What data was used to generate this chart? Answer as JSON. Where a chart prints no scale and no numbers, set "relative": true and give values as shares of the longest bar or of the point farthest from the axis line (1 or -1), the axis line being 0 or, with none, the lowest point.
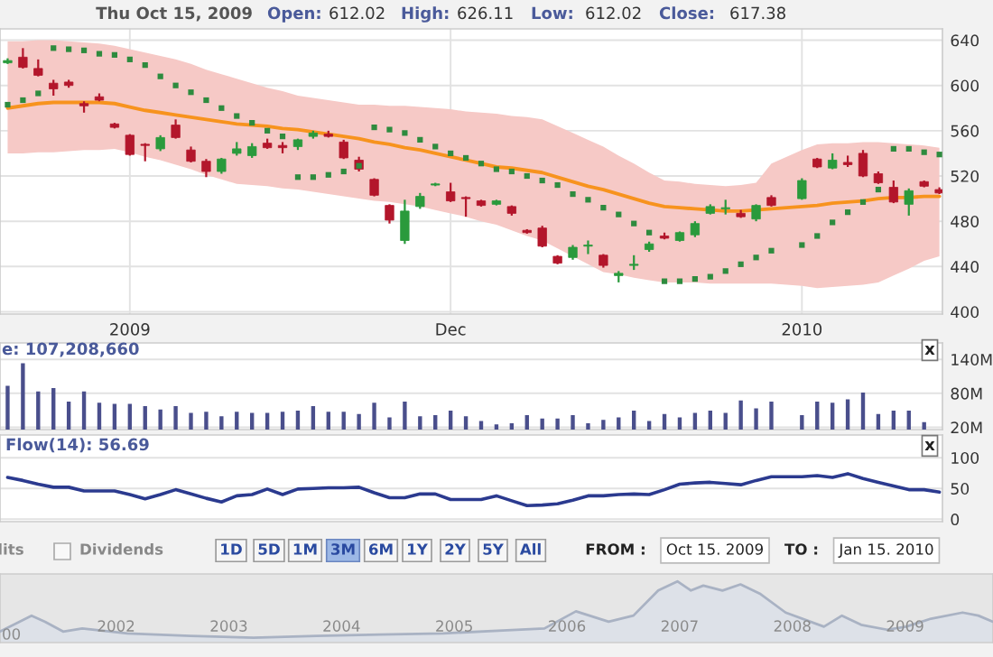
{
  "chart_data": [
    {
      "type": "candlestick",
      "annotations": [
        "Thu Oct 15, 2009",
        "Open:",
        "612.02",
        "High:",
        "626.11",
        "Low:",
        "612.02",
        "Close:",
        "617.38"
      ],
      "categories": [
        null,
        null,
        null,
        null,
        null,
        null,
        null,
        null,
        "2009",
        null,
        null,
        null,
        null,
        null,
        null,
        null,
        null,
        null,
        null,
        null,
        null,
        null,
        null,
        null,
        null,
        null,
        null,
        null,
        null,
        "Dec",
        null,
        null,
        null,
        null,
        null,
        null,
        null,
        null,
        null,
        null,
        null,
        null,
        null,
        null,
        null,
        null,
        null,
        null,
        null,
        null,
        null,
        null,
        "2010",
        null,
        null,
        null,
        null,
        null,
        null,
        null,
        null,
        null
      ],
      "ohlc": [
        [
          620,
          624,
          619,
          622
        ],
        [
          625,
          633,
          615,
          616
        ],
        [
          615,
          623,
          608,
          609
        ],
        [
          602,
          605,
          591,
          597
        ],
        [
          603,
          605,
          598,
          600
        ],
        [
          584,
          586,
          576,
          582
        ],
        [
          590,
          593,
          586,
          587
        ],
        [
          566,
          567,
          562,
          563
        ],
        [
          556,
          557,
          538,
          539
        ],
        [
          548,
          549,
          533,
          547
        ],
        [
          544,
          556,
          542,
          554
        ],
        [
          565,
          570,
          553,
          554
        ],
        [
          543,
          546,
          532,
          533
        ],
        [
          533,
          535,
          519,
          524
        ],
        [
          524,
          536,
          522,
          535
        ],
        [
          540,
          550,
          538,
          544
        ],
        [
          538,
          549,
          536,
          546
        ],
        [
          549,
          553,
          544,
          545
        ],
        [
          547,
          550,
          540,
          545
        ],
        [
          546,
          553,
          543,
          552
        ],
        [
          555,
          560,
          553,
          558
        ],
        [
          557,
          560,
          554,
          555
        ],
        [
          550,
          552,
          535,
          536
        ],
        [
          534,
          537,
          524,
          526
        ],
        [
          517,
          518,
          502,
          503
        ],
        [
          494,
          495,
          478,
          481
        ],
        [
          463,
          499,
          460,
          489
        ],
        [
          493,
          505,
          491,
          502
        ],
        [
          512,
          514,
          511,
          513
        ],
        [
          506,
          514,
          497,
          498
        ],
        [
          501,
          502,
          484,
          500
        ],
        [
          498,
          499,
          493,
          494
        ],
        [
          495,
          499,
          494,
          498
        ],
        [
          493,
          494,
          485,
          487
        ],
        [
          472,
          473,
          469,
          470
        ],
        [
          474,
          476,
          457,
          458
        ],
        [
          449,
          450,
          442,
          443
        ],
        [
          448,
          459,
          446,
          457
        ],
        [
          458,
          463,
          451,
          459
        ],
        [
          450,
          451,
          439,
          441
        ],
        [
          432,
          436,
          426,
          434
        ],
        [
          441,
          450,
          437,
          442
        ],
        [
          455,
          462,
          453,
          460
        ],
        [
          467,
          470,
          464,
          465
        ],
        [
          463,
          471,
          462,
          470
        ],
        [
          468,
          480,
          466,
          478
        ],
        [
          487,
          495,
          486,
          493
        ],
        [
          491,
          499,
          486,
          492
        ],
        [
          487,
          490,
          483,
          484
        ],
        [
          482,
          495,
          480,
          494
        ],
        [
          501,
          503,
          493,
          494
        ],
        null,
        [
          500,
          518,
          499,
          516
        ],
        [
          535,
          536,
          527,
          528
        ],
        [
          527,
          540,
          526,
          534
        ],
        [
          532,
          538,
          528,
          530
        ],
        [
          540,
          543,
          519,
          520
        ],
        [
          522,
          524,
          513,
          514
        ],
        [
          510,
          516,
          496,
          497
        ],
        [
          495,
          509,
          485,
          507
        ],
        [
          515,
          516,
          510,
          511
        ],
        [
          508,
          510,
          504,
          505
        ]
      ],
      "colors": [
        "#2a9a3c",
        "#b3162b",
        "#b3162b",
        "#b3162b",
        "#b3162b",
        "#b3162b",
        "#b3162b",
        "#b3162b",
        "#b3162b",
        "#b3162b",
        "#2a9a3c",
        "#b3162b",
        "#b3162b",
        "#b3162b",
        "#2a9a3c",
        "#2a9a3c",
        "#2a9a3c",
        "#b3162b",
        "#b3162b",
        "#2a9a3c",
        "#2a9a3c",
        "#b3162b",
        "#b3162b",
        "#b3162b",
        "#b3162b",
        "#b3162b",
        "#2a9a3c",
        "#2a9a3c",
        "#2a9a3c",
        "#b3162b",
        "#b3162b",
        "#b3162b",
        "#2a9a3c",
        "#b3162b",
        "#b3162b",
        "#b3162b",
        "#b3162b",
        "#2a9a3c",
        "#2a9a3c",
        "#b3162b",
        "#2a9a3c",
        "#2a9a3c",
        "#2a9a3c",
        "#b3162b",
        "#2a9a3c",
        "#2a9a3c",
        "#2a9a3c",
        "#2a9a3c",
        "#b3162b",
        "#2a9a3c",
        "#b3162b",
        null,
        "#2a9a3c",
        "#b3162b",
        "#2a9a3c",
        "#b3162b",
        "#b3162b",
        "#b3162b",
        "#b3162b",
        "#2a9a3c",
        "#b3162b",
        "#b3162b"
      ],
      "series": [
        {
          "type": "line",
          "color": "#f7931e",
          "values": [
            580,
            582,
            584,
            585,
            585,
            585,
            585,
            584,
            581,
            578,
            576,
            574,
            572,
            570,
            568,
            566,
            565,
            564,
            562,
            561,
            559,
            557,
            555,
            553,
            550,
            548,
            545,
            543,
            540,
            537,
            534,
            531,
            528,
            527,
            525,
            523,
            519,
            515,
            511,
            508,
            504,
            500,
            496,
            493,
            492,
            491,
            490,
            489,
            489,
            490,
            491,
            492,
            493,
            494,
            496,
            497,
            498,
            500,
            501,
            501,
            502,
            502
          ],
          "upper": [
            639,
            639,
            640,
            640,
            639,
            638,
            637,
            635,
            632,
            629,
            626,
            623,
            619,
            614,
            610,
            606,
            602,
            598,
            595,
            591,
            589,
            587,
            585,
            583,
            583,
            582,
            582,
            581,
            580,
            579,
            577,
            576,
            575,
            573,
            572,
            570,
            564,
            558,
            552,
            546,
            538,
            531,
            523,
            516,
            515,
            513,
            512,
            511,
            512,
            514,
            531,
            537,
            543,
            548,
            549,
            549,
            550,
            550,
            549,
            548,
            547,
            545
          ],
          "lower": [
            540,
            540,
            541,
            541,
            542,
            543,
            543,
            544,
            541,
            537,
            534,
            530,
            526,
            521,
            517,
            513,
            512,
            511,
            509,
            508,
            506,
            504,
            502,
            500,
            498,
            497,
            495,
            493,
            490,
            487,
            484,
            480,
            477,
            472,
            467,
            463,
            456,
            449,
            442,
            435,
            433,
            430,
            428,
            426,
            426,
            426,
            425,
            425,
            425,
            425,
            425,
            424,
            423,
            421,
            422,
            423,
            424,
            426,
            432,
            438,
            445,
            449
          ]
        },
        {
          "type": "scatter",
          "color": "#2e8b3e",
          "marker": "square",
          "values": [
            583,
            587,
            593,
            633,
            632,
            631,
            628,
            627,
            623,
            618,
            608,
            600,
            594,
            587,
            580,
            573,
            567,
            560,
            555,
            519,
            519,
            521,
            524,
            529,
            563,
            561,
            558,
            552,
            546,
            540,
            536,
            531,
            526,
            524,
            520,
            516,
            512,
            504,
            499,
            492,
            486,
            478,
            470,
            427,
            427,
            429,
            431,
            436,
            442,
            448,
            454,
            null,
            459,
            467,
            479,
            488,
            497,
            508,
            544,
            544,
            541,
            539
          ]
        }
      ],
      "ylim": [
        398,
        650
      ],
      "yticks": [
        400,
        440,
        480,
        520,
        560,
        600,
        640
      ],
      "grid": true
    },
    {
      "type": "bar",
      "annotations": [
        "e: 107,208,660",
        "x"
      ],
      "color": "#4a4f8c",
      "categories": [
        null,
        null,
        null,
        null,
        null,
        null,
        null,
        null,
        null,
        null,
        null,
        null,
        null,
        null,
        null,
        null,
        null,
        null,
        null,
        null,
        null,
        null,
        null,
        null,
        null,
        null,
        null,
        null,
        null,
        null,
        null,
        null,
        null,
        null,
        null,
        null,
        null,
        null,
        null,
        null,
        null,
        null,
        null,
        null,
        null,
        null,
        null,
        null,
        null,
        null,
        null,
        null,
        null,
        null,
        null,
        null,
        null,
        null,
        null,
        null,
        null,
        null
      ],
      "values": [
        92,
        132,
        82,
        88,
        64,
        82,
        62,
        60,
        60,
        56,
        50,
        56,
        44,
        46,
        38,
        46,
        44,
        44,
        46,
        48,
        56,
        46,
        46,
        42,
        62,
        36,
        64,
        38,
        40,
        48,
        38,
        30,
        24,
        26,
        40,
        34,
        34,
        40,
        26,
        32,
        36,
        48,
        30,
        42,
        36,
        44,
        48,
        44,
        66,
        52,
        64,
        null,
        40,
        64,
        62,
        68,
        80,
        42,
        48,
        48,
        28,
        null
      ],
      "ylim": [
        16,
        169
      ],
      "yticks": [
        {
          "value": 20,
          "label": "20M"
        },
        {
          "value": 80,
          "label": "80M"
        },
        {
          "value": 140,
          "label": "140M"
        }
      ],
      "grid": true,
      "tick_labels": "y"
    },
    {
      "type": "line",
      "annotations": [
        "Flow(14): 56.69",
        "x"
      ],
      "color": "#2b3a8f",
      "categories": [
        null,
        null,
        null,
        null,
        null,
        null,
        null,
        null,
        null,
        null,
        null,
        null,
        null,
        null,
        null,
        null,
        null,
        null,
        null,
        null,
        null,
        null,
        null,
        null,
        null,
        null,
        null,
        null,
        null,
        null,
        null,
        null,
        null,
        null,
        null,
        null,
        null,
        null,
        null,
        null,
        null,
        null,
        null,
        null,
        null,
        null,
        null,
        null,
        null,
        null,
        null,
        null,
        null,
        null,
        null,
        null,
        null,
        null,
        null,
        null,
        null,
        null
      ],
      "values": [
        68,
        63,
        57,
        52,
        52,
        46,
        46,
        46,
        40,
        33,
        40,
        48,
        41,
        34,
        28,
        38,
        40,
        49,
        40,
        49,
        50,
        51,
        51,
        52,
        43,
        35,
        35,
        41,
        41,
        32,
        32,
        32,
        38,
        30,
        22,
        23,
        25,
        31,
        38,
        38,
        40,
        41,
        40,
        48,
        57,
        59,
        60,
        58,
        56,
        63,
        69,
        69,
        69,
        71,
        68,
        74,
        66,
        60,
        54,
        48,
        48,
        44
      ],
      "ylim": [
        -4,
        137
      ],
      "yticks": [
        0,
        50,
        100
      ],
      "grid": true,
      "tick_labels": "y"
    },
    {
      "type": "other",
      "annotations": [
        "lits",
        "Dividends",
        "1D",
        "5D",
        "1M",
        "3M",
        "6M",
        "1Y",
        "2Y",
        "5Y",
        "All",
        "FROM :",
        "Oct 15. 2009",
        "TO :",
        "Jan 15. 2010"
      ]
    },
    {
      "type": "area",
      "relative": true,
      "color": "#a9b2c3",
      "annotations": [
        "00"
      ],
      "x": [
        2000.97,
        2001.25,
        2001.37,
        2001.53,
        2001.7,
        2002.1,
        2002.66,
        2003.22,
        2003.78,
        2004.34,
        2004.9,
        2005.47,
        2005.8,
        2006.08,
        2006.37,
        2006.59,
        2006.81,
        2006.98,
        2007.1,
        2007.21,
        2007.38,
        2007.54,
        2007.71,
        2007.94,
        2008.28,
        2008.44,
        2008.61,
        2008.84,
        2009.01,
        2009.23,
        2009.51,
        2009.65,
        2009.78
      ],
      "values": [
        0.18,
        0.44,
        0.34,
        0.18,
        0.23,
        0.15,
        0.11,
        0.08,
        0.11,
        0.13,
        0.15,
        0.2,
        0.23,
        0.51,
        0.34,
        0.44,
        0.85,
        1,
        0.85,
        0.93,
        0.85,
        0.95,
        0.8,
        0.49,
        0.26,
        0.44,
        0.29,
        0.21,
        0.26,
        0.39,
        0.49,
        0.44,
        0.34
      ],
      "xlim": [
        2000.97,
        2009.78
      ],
      "xticks": [
        2002,
        2003,
        2004,
        2005,
        2006,
        2007,
        2008,
        2009
      ]
    }
  ]
}
